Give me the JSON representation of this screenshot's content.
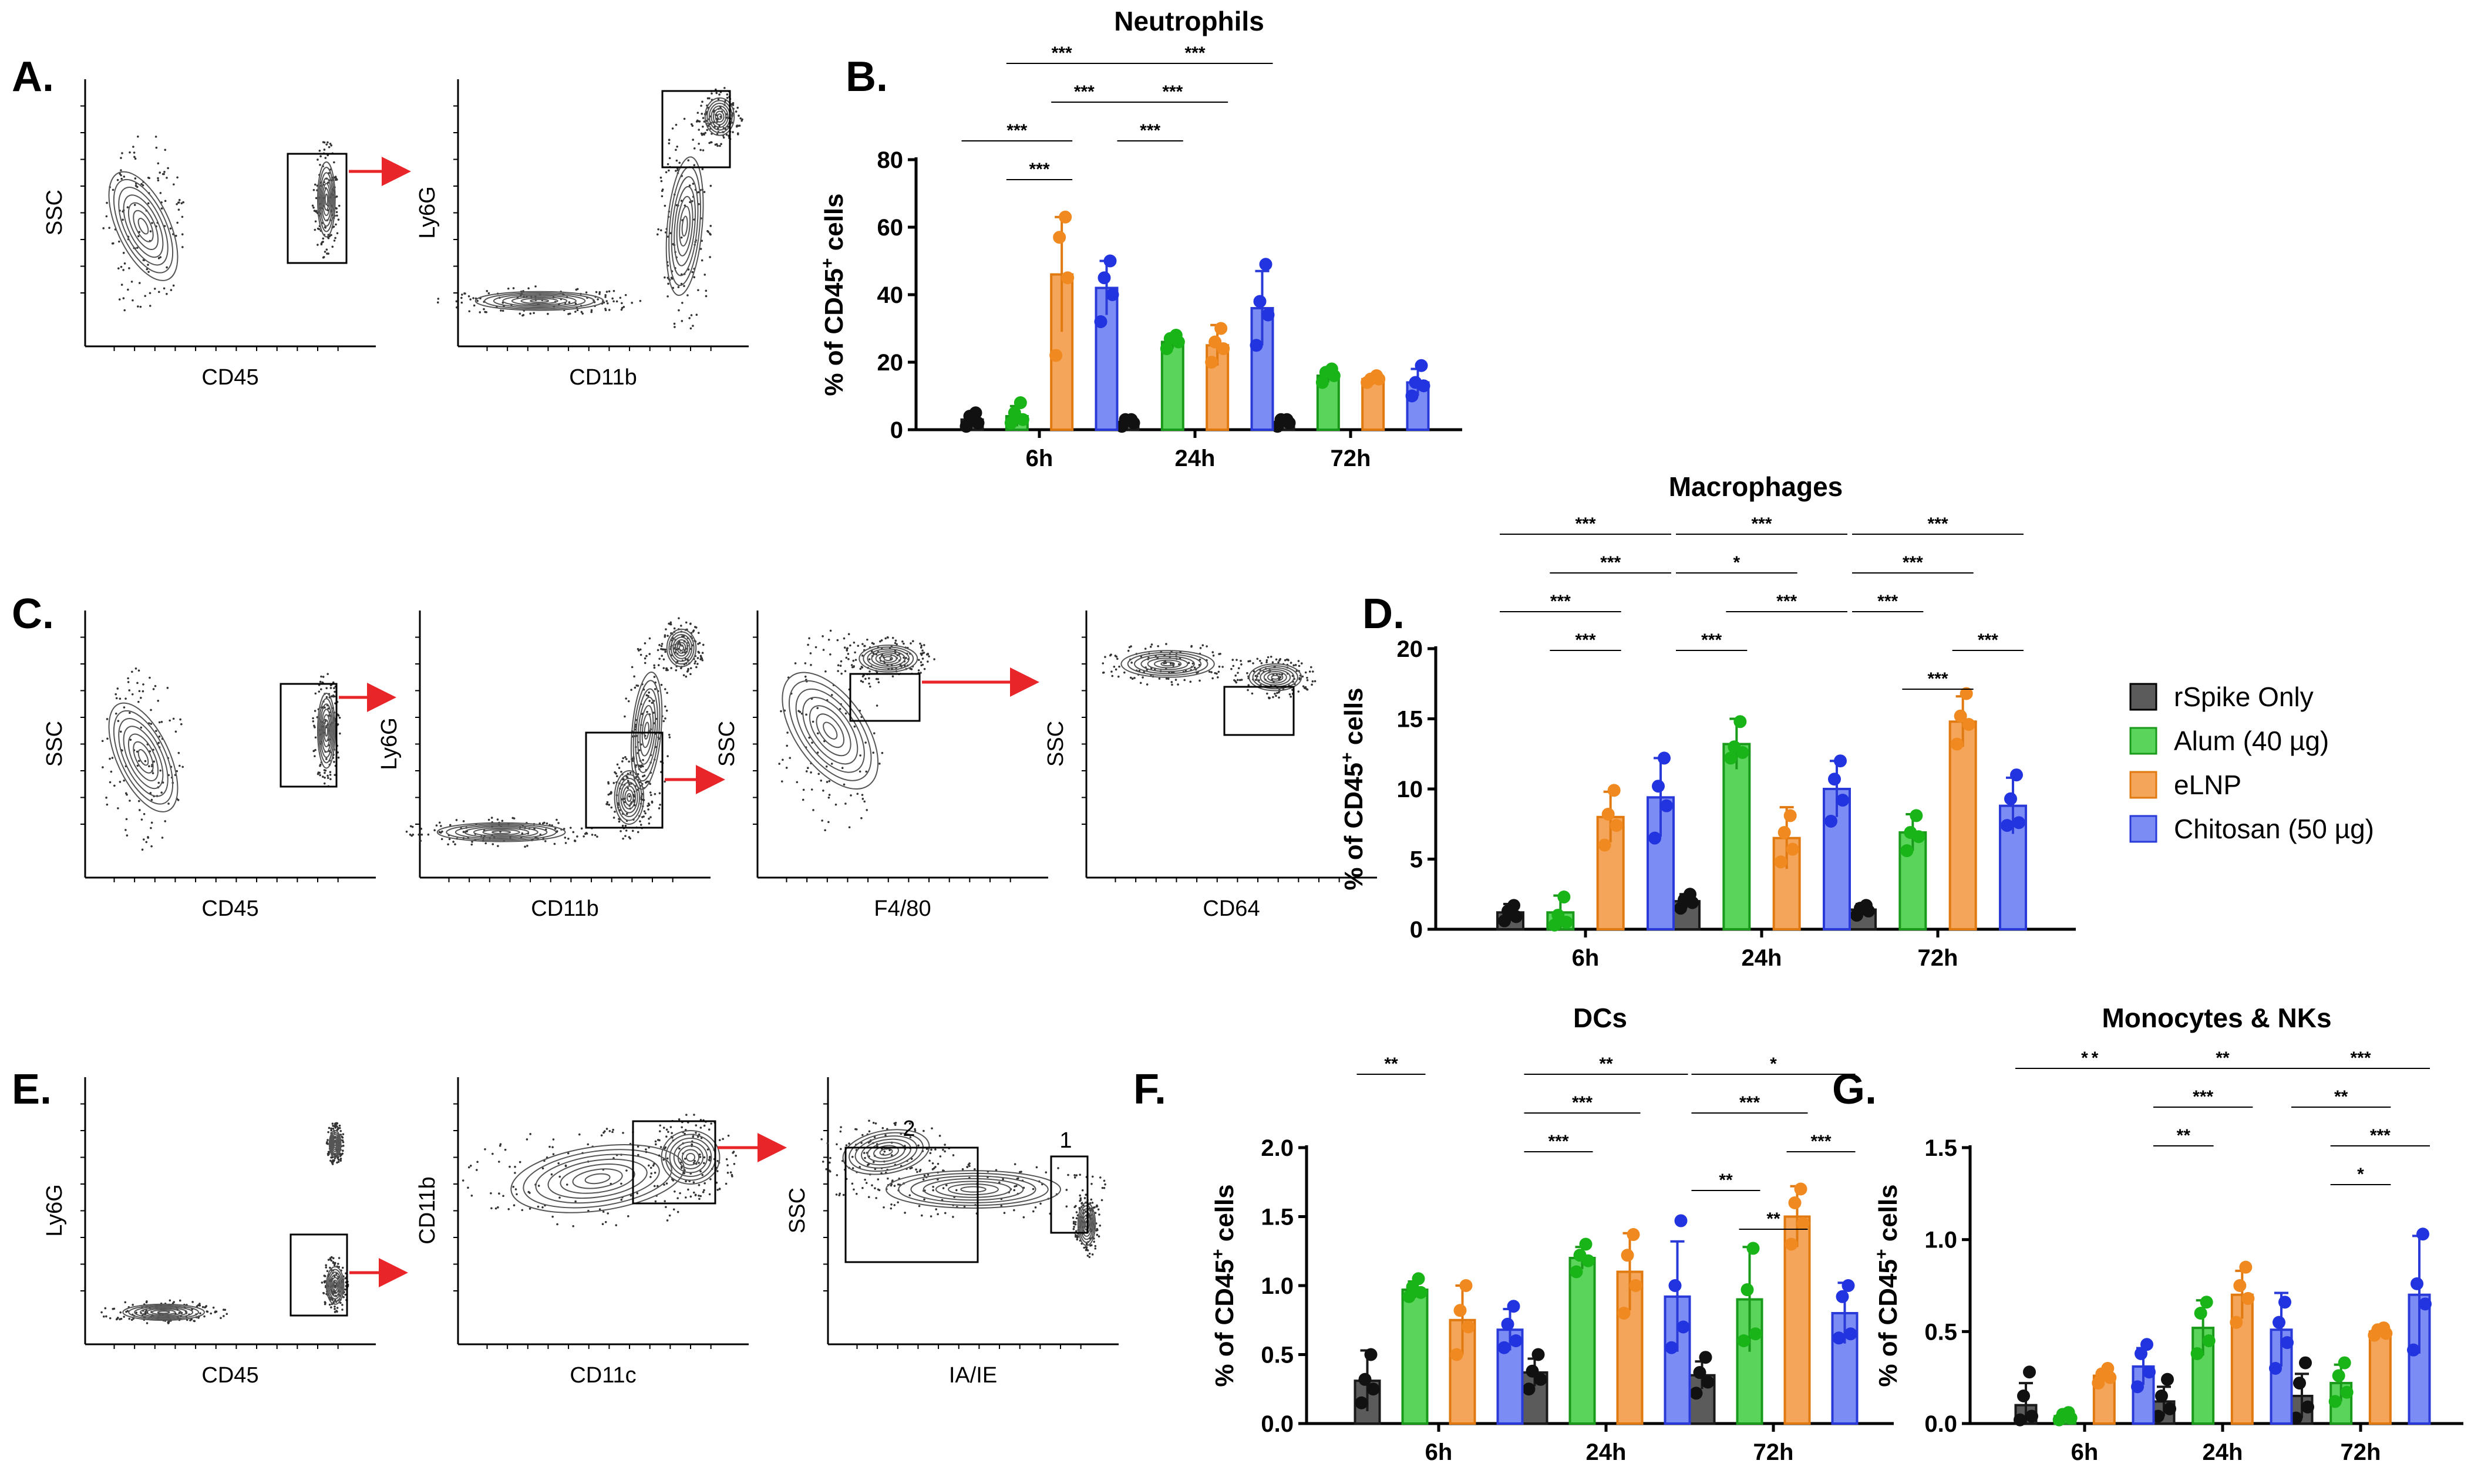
{
  "panel_labels": {
    "A": "A.",
    "B": "B.",
    "C": "C.",
    "D": "D.",
    "E": "E.",
    "F": "F.",
    "G": "G."
  },
  "flow_panels": [
    {
      "group": "A",
      "x_label": "CD45",
      "y_label": "SSC"
    },
    {
      "group": "A",
      "x_label": "CD11b",
      "y_label": "Ly6G"
    },
    {
      "group": "C",
      "x_label": "CD45",
      "y_label": "SSC"
    },
    {
      "group": "C",
      "x_label": "CD11b",
      "y_label": "Ly6G"
    },
    {
      "group": "C",
      "x_label": "F4/80",
      "y_label": "SSC"
    },
    {
      "group": "C",
      "x_label": "CD64",
      "y_label": "SSC"
    },
    {
      "group": "E",
      "x_label": "CD45",
      "y_label": "Ly6G"
    },
    {
      "group": "E",
      "x_label": "CD11c",
      "y_label": "CD11b"
    },
    {
      "group": "E",
      "x_label": "IA/IE",
      "y_label": "SSC",
      "gate_labels": [
        "2",
        "1"
      ]
    }
  ],
  "legend": {
    "entries": [
      {
        "name": "rSpike Only",
        "color": "#5b5b5b"
      },
      {
        "name": "Alum (40 µg)",
        "color": "#5ad45a"
      },
      {
        "name": "eLNP",
        "color": "#f5a55a"
      },
      {
        "name": "Chitosan (50 µg)",
        "color": "#7c8cf5"
      }
    ]
  },
  "chart_data": [
    {
      "panel": "B",
      "type": "bar",
      "title": "Neutrophils",
      "ylabel_main": "% of CD45",
      "ylabel_sup": "+",
      "ylabel_tail": " cells",
      "categories": [
        "6h",
        "24h",
        "72h"
      ],
      "ylim": [
        0,
        80
      ],
      "yticks": [
        "0",
        "20",
        "40",
        "60",
        "80"
      ],
      "series": [
        {
          "name": "rSpike Only",
          "values": [
            3,
            2,
            2
          ],
          "err": [
            1.5,
            1,
            1
          ],
          "points": [
            [
              1,
              2,
              4,
              5
            ],
            [
              1,
              2,
              3,
              3
            ],
            [
              1,
              2,
              3,
              3
            ]
          ]
        },
        {
          "name": "Alum (40 µg)",
          "values": [
            4,
            26,
            16
          ],
          "err": [
            3,
            2,
            2
          ],
          "points": [
            [
              2,
              3,
              5,
              8
            ],
            [
              24,
              26,
              27,
              28
            ],
            [
              14,
              16,
              17,
              18
            ]
          ]
        },
        {
          "name": "eLNP",
          "values": [
            46,
            25,
            15
          ],
          "err": [
            17,
            6,
            1
          ],
          "points": [
            [
              22,
              45,
              57,
              63
            ],
            [
              20,
              24,
              26,
              30
            ],
            [
              14,
              15,
              15,
              16
            ]
          ]
        },
        {
          "name": "Chitosan (50 µg)",
          "values": [
            42,
            36,
            14
          ],
          "err": [
            8,
            11,
            4
          ],
          "points": [
            [
              32,
              40,
              45,
              50
            ],
            [
              25,
              34,
              38,
              49
            ],
            [
              10,
              13,
              14,
              19
            ]
          ]
        }
      ],
      "significance": [
        {
          "label": "***",
          "from": [
            0,
            1
          ],
          "to": [
            0,
            3
          ]
        },
        {
          "label": "***",
          "from": [
            0,
            2
          ],
          "to": [
            0,
            3
          ]
        },
        {
          "label": "***",
          "from": [
            0,
            0
          ],
          "to": [
            0,
            2
          ]
        },
        {
          "label": "***",
          "from": [
            0,
            1
          ],
          "to": [
            0,
            2
          ]
        },
        {
          "label": "***",
          "from": [
            1,
            0
          ],
          "to": [
            1,
            3
          ]
        },
        {
          "label": "***",
          "from": [
            1,
            0
          ],
          "to": [
            1,
            2
          ]
        },
        {
          "label": "***",
          "from": [
            1,
            0
          ],
          "to": [
            1,
            1
          ]
        }
      ]
    },
    {
      "panel": "D",
      "type": "bar",
      "title": "Macrophages",
      "ylabel_main": "% of CD45",
      "ylabel_sup": "+",
      "ylabel_tail": " cells",
      "categories": [
        "6h",
        "24h",
        "72h"
      ],
      "ylim": [
        0,
        20
      ],
      "yticks": [
        "0",
        "5",
        "10",
        "15",
        "20"
      ],
      "series": [
        {
          "name": "rSpike Only",
          "values": [
            1.2,
            2.0,
            1.4
          ],
          "err": [
            0.6,
            0.5,
            0.4
          ],
          "points": [
            [
              0.6,
              0.9,
              1.3,
              1.7
            ],
            [
              1.5,
              1.9,
              2.1,
              2.5
            ],
            [
              1.0,
              1.3,
              1.5,
              1.7
            ]
          ]
        },
        {
          "name": "Alum (40 µg)",
          "values": [
            1.2,
            13.2,
            6.9
          ],
          "err": [
            1.2,
            1.8,
            1.3
          ],
          "points": [
            [
              0.3,
              0.5,
              1.0,
              2.3
            ],
            [
              12.2,
              12.6,
              13.0,
              14.8
            ],
            [
              5.6,
              6.6,
              6.9,
              8.1
            ]
          ]
        },
        {
          "name": "eLNP",
          "values": [
            8.0,
            6.5,
            14.8
          ],
          "err": [
            1.8,
            2.2,
            1.8
          ],
          "points": [
            [
              6.0,
              7.4,
              8.2,
              9.9
            ],
            [
              4.8,
              5.7,
              6.9,
              8.1
            ],
            [
              13.2,
              14.6,
              15.2,
              16.8
            ]
          ]
        },
        {
          "name": "Chitosan (50 µg)",
          "values": [
            9.4,
            10.0,
            8.8
          ],
          "err": [
            2.8,
            2.0,
            2.0
          ],
          "points": [
            [
              6.5,
              8.8,
              10.2,
              12.2
            ],
            [
              7.7,
              9.2,
              10.7,
              12.0
            ],
            [
              7.4,
              7.6,
              9.3,
              11.0
            ]
          ]
        }
      ],
      "significance": [
        {
          "label": "***",
          "from": [
            0,
            0
          ],
          "to": [
            0,
            3
          ]
        },
        {
          "label": "***",
          "from": [
            0,
            1
          ],
          "to": [
            0,
            3
          ]
        },
        {
          "label": "***",
          "from": [
            0,
            0
          ],
          "to": [
            0,
            2
          ]
        },
        {
          "label": "***",
          "from": [
            0,
            1
          ],
          "to": [
            0,
            2
          ]
        },
        {
          "label": "***",
          "from": [
            1,
            0
          ],
          "to": [
            1,
            3
          ]
        },
        {
          "label": "*",
          "from": [
            1,
            0
          ],
          "to": [
            1,
            2
          ]
        },
        {
          "label": "***",
          "from": [
            1,
            1
          ],
          "to": [
            1,
            3
          ]
        },
        {
          "label": "***",
          "from": [
            1,
            0
          ],
          "to": [
            1,
            1
          ]
        },
        {
          "label": "***",
          "from": [
            2,
            0
          ],
          "to": [
            2,
            3
          ]
        },
        {
          "label": "***",
          "from": [
            2,
            0
          ],
          "to": [
            2,
            2
          ]
        },
        {
          "label": "***",
          "from": [
            2,
            0
          ],
          "to": [
            2,
            1
          ]
        },
        {
          "label": "***",
          "from": [
            2,
            2
          ],
          "to": [
            2,
            3
          ]
        },
        {
          "label": "***",
          "from": [
            2,
            1
          ],
          "to": [
            2,
            2
          ]
        }
      ]
    },
    {
      "panel": "F",
      "type": "bar",
      "title": "DCs",
      "ylabel_main": "% of CD45",
      "ylabel_sup": "+",
      "ylabel_tail": " cells",
      "categories": [
        "6h",
        "24h",
        "72h"
      ],
      "ylim": [
        0,
        2.0
      ],
      "yticks": [
        "0.0",
        "0.5",
        "1.0",
        "1.5",
        "2.0"
      ],
      "series": [
        {
          "name": "rSpike Only",
          "values": [
            0.31,
            0.37,
            0.35
          ],
          "err": [
            0.22,
            0.1,
            0.1
          ],
          "points": [
            [
              0.15,
              0.25,
              0.32,
              0.5
            ],
            [
              0.25,
              0.32,
              0.38,
              0.5
            ],
            [
              0.22,
              0.3,
              0.37,
              0.48
            ]
          ]
        },
        {
          "name": "Alum (40 µg)",
          "values": [
            0.97,
            1.2,
            0.9
          ],
          "err": [
            0.06,
            0.08,
            0.38
          ],
          "points": [
            [
              0.92,
              0.95,
              0.99,
              1.05
            ],
            [
              1.1,
              1.18,
              1.22,
              1.3
            ],
            [
              0.6,
              0.65,
              0.97,
              1.27
            ]
          ]
        },
        {
          "name": "eLNP",
          "values": [
            0.75,
            1.1,
            1.5
          ],
          "err": [
            0.25,
            0.28,
            0.22
          ],
          "points": [
            [
              0.5,
              0.7,
              0.82,
              1.0
            ],
            [
              0.8,
              1.0,
              1.22,
              1.37
            ],
            [
              1.3,
              1.45,
              1.6,
              1.7
            ]
          ]
        },
        {
          "name": "Chitosan (50 µg)",
          "values": [
            0.68,
            0.92,
            0.8
          ],
          "err": [
            0.15,
            0.4,
            0.22
          ],
          "points": [
            [
              0.55,
              0.6,
              0.72,
              0.85
            ],
            [
              0.55,
              0.7,
              1.0,
              1.47
            ],
            [
              0.62,
              0.65,
              0.92,
              1.0
            ]
          ]
        }
      ],
      "significance": [
        {
          "label": "**",
          "from": [
            0,
            0
          ],
          "to": [
            0,
            1
          ]
        },
        {
          "label": "**",
          "from": [
            1,
            0
          ],
          "to": [
            1,
            3
          ]
        },
        {
          "label": "***",
          "from": [
            1,
            0
          ],
          "to": [
            1,
            2
          ]
        },
        {
          "label": "***",
          "from": [
            1,
            0
          ],
          "to": [
            1,
            1
          ]
        },
        {
          "label": "*",
          "from": [
            2,
            0
          ],
          "to": [
            2,
            3
          ]
        },
        {
          "label": "***",
          "from": [
            2,
            0
          ],
          "to": [
            2,
            2
          ]
        },
        {
          "label": "***",
          "from": [
            2,
            2
          ],
          "to": [
            2,
            3
          ]
        },
        {
          "label": "**",
          "from": [
            2,
            0
          ],
          "to": [
            2,
            1
          ]
        },
        {
          "label": "**",
          "from": [
            2,
            1
          ],
          "to": [
            2,
            2
          ]
        }
      ]
    },
    {
      "panel": "G",
      "type": "bar",
      "title": "Monocytes & NKs",
      "ylabel_main": "% of CD45",
      "ylabel_sup": "+",
      "ylabel_tail": " cells",
      "categories": [
        "6h",
        "24h",
        "72h"
      ],
      "ylim": [
        0,
        1.5
      ],
      "yticks": [
        "0.0",
        "0.5",
        "1.0",
        "1.5"
      ],
      "series": [
        {
          "name": "rSpike Only",
          "values": [
            0.1,
            0.12,
            0.15
          ],
          "err": [
            0.12,
            0.08,
            0.12
          ],
          "points": [
            [
              0.02,
              0.04,
              0.15,
              0.28
            ],
            [
              0.04,
              0.08,
              0.15,
              0.24
            ],
            [
              0.03,
              0.09,
              0.22,
              0.33
            ]
          ]
        },
        {
          "name": "Alum (40 µg)",
          "values": [
            0.04,
            0.52,
            0.22
          ],
          "err": [
            0.02,
            0.15,
            0.1
          ],
          "points": [
            [
              0.02,
              0.03,
              0.05,
              0.06
            ],
            [
              0.38,
              0.45,
              0.6,
              0.66
            ],
            [
              0.12,
              0.17,
              0.26,
              0.33
            ]
          ]
        },
        {
          "name": "eLNP",
          "values": [
            0.26,
            0.7,
            0.5
          ],
          "err": [
            0.03,
            0.13,
            0.02
          ],
          "points": [
            [
              0.22,
              0.25,
              0.27,
              0.3
            ],
            [
              0.55,
              0.68,
              0.75,
              0.85
            ],
            [
              0.48,
              0.49,
              0.51,
              0.52
            ]
          ]
        },
        {
          "name": "Chitosan (50 µg)",
          "values": [
            0.31,
            0.51,
            0.7
          ],
          "err": [
            0.1,
            0.2,
            0.32
          ],
          "points": [
            [
              0.2,
              0.28,
              0.38,
              0.43
            ],
            [
              0.3,
              0.44,
              0.55,
              0.66
            ],
            [
              0.4,
              0.65,
              0.76,
              1.03
            ]
          ]
        }
      ],
      "significance": [
        {
          "label": "*",
          "from": [
            0,
            0
          ],
          "to": [
            1,
            0
          ]
        },
        {
          "label": "*",
          "from": [
            0,
            0
          ],
          "to": [
            0,
            3
          ]
        },
        {
          "label": "**",
          "from": [
            1,
            0
          ],
          "to": [
            1,
            3
          ]
        },
        {
          "label": "***",
          "from": [
            1,
            0
          ],
          "to": [
            1,
            2
          ]
        },
        {
          "label": "**",
          "from": [
            1,
            0
          ],
          "to": [
            1,
            1
          ]
        },
        {
          "label": "***",
          "from": [
            2,
            0
          ],
          "to": [
            2,
            3
          ]
        },
        {
          "label": "**",
          "from": [
            2,
            0
          ],
          "to": [
            2,
            2
          ]
        },
        {
          "label": "***",
          "from": [
            2,
            1
          ],
          "to": [
            2,
            3
          ]
        },
        {
          "label": "*",
          "from": [
            2,
            1
          ],
          "to": [
            2,
            2
          ]
        }
      ]
    }
  ]
}
